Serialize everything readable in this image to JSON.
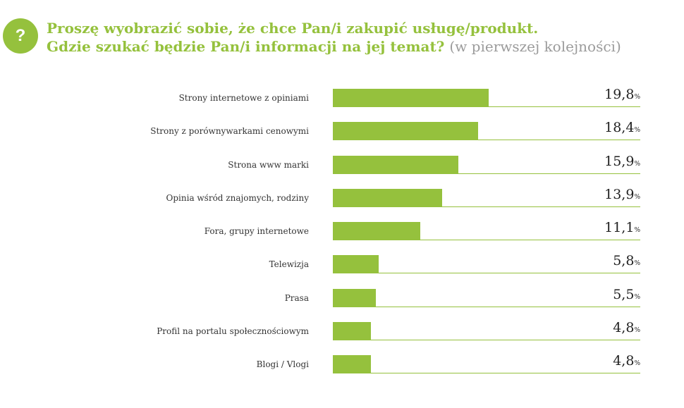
{
  "header": {
    "badge": "?",
    "title_line1": "Proszę wyobrazić sobie, że chce Pan/i zakupić usługę/produkt.",
    "title_line2": "Gdzie szukać będzie Pan/i informacji na jej temat?",
    "title_note": "(w pierwszej kolejności)"
  },
  "chart_data": {
    "type": "bar",
    "orientation": "horizontal",
    "categories": [
      "Strony internetowe z opiniami",
      "Strony z porównywarkami cenowymi",
      "Strona www marki",
      "Opinia wśród znajomych, rodziny",
      "Fora, grupy internetowe",
      "Telewizja",
      "Prasa",
      "Profil na portalu społecznościowym",
      "Blogi / Vlogi"
    ],
    "values": [
      19.8,
      18.4,
      15.9,
      13.9,
      11.1,
      5.8,
      5.5,
      4.8,
      4.8
    ],
    "value_labels": [
      "19,8",
      "18,4",
      "15,9",
      "13,9",
      "11,1",
      "5,8",
      "5,5",
      "4,8",
      "4,8"
    ],
    "unit": "%",
    "xlim": [
      0,
      39
    ],
    "bar_color": "#95c13d",
    "grid": false,
    "legend": "none"
  }
}
